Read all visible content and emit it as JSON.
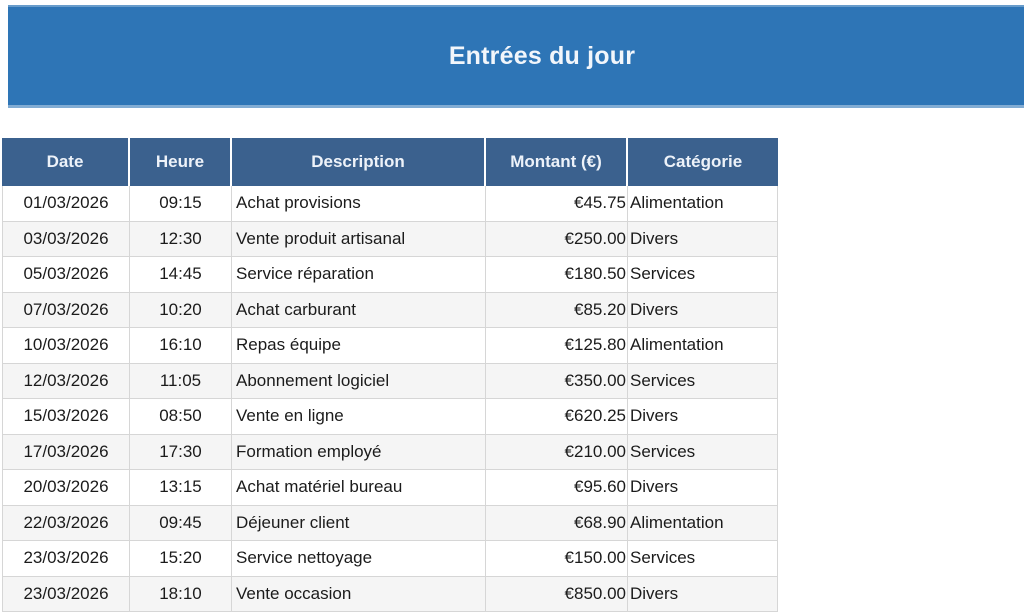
{
  "banner": {
    "title": "Entrées du jour"
  },
  "colors": {
    "banner_blue": "#2E75B6",
    "table_header_blue": "#3B618E",
    "alt_row_gray": "#F5F5F5",
    "grid_line": "#D6D6D6"
  },
  "table": {
    "columns": [
      {
        "label": "Date"
      },
      {
        "label": "Heure"
      },
      {
        "label": "Description"
      },
      {
        "label": "Montant (€)"
      },
      {
        "label": "Catégorie"
      }
    ],
    "rows": [
      {
        "date": "01/03/2026",
        "time": "09:15",
        "description": "Achat provisions",
        "amount": "€45.75",
        "category": "Alimentation"
      },
      {
        "date": "03/03/2026",
        "time": "12:30",
        "description": "Vente produit artisanal",
        "amount": "€250.00",
        "category": "Divers"
      },
      {
        "date": "05/03/2026",
        "time": "14:45",
        "description": "Service réparation",
        "amount": "€180.50",
        "category": "Services"
      },
      {
        "date": "07/03/2026",
        "time": "10:20",
        "description": "Achat carburant",
        "amount": "€85.20",
        "category": "Divers"
      },
      {
        "date": "10/03/2026",
        "time": "16:10",
        "description": "Repas équipe",
        "amount": "€125.80",
        "category": "Alimentation"
      },
      {
        "date": "12/03/2026",
        "time": "11:05",
        "description": "Abonnement logiciel",
        "amount": "€350.00",
        "category": "Services"
      },
      {
        "date": "15/03/2026",
        "time": "08:50",
        "description": "Vente en ligne",
        "amount": "€620.25",
        "category": "Divers"
      },
      {
        "date": "17/03/2026",
        "time": "17:30",
        "description": "Formation employé",
        "amount": "€210.00",
        "category": "Services"
      },
      {
        "date": "20/03/2026",
        "time": "13:15",
        "description": "Achat matériel bureau",
        "amount": "€95.60",
        "category": "Divers"
      },
      {
        "date": "22/03/2026",
        "time": "09:45",
        "description": "Déjeuner client",
        "amount": "€68.90",
        "category": "Alimentation"
      },
      {
        "date": "23/03/2026",
        "time": "15:20",
        "description": "Service nettoyage",
        "amount": "€150.00",
        "category": "Services"
      },
      {
        "date": "23/03/2026",
        "time": "18:10",
        "description": "Vente occasion",
        "amount": "€850.00",
        "category": "Divers"
      }
    ]
  }
}
